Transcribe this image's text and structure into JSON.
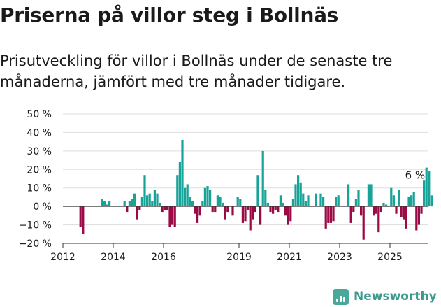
{
  "header": {
    "title": "Priserna på villor steg i Bollnäs",
    "subtitle": "Prisutveckling för villor i Bollnäs under de senaste tre månaderna, jämfört med tre månader tidigare."
  },
  "brand": {
    "name": "Newsworthy"
  },
  "colors": {
    "positive": "#17a398",
    "negative": "#9a0a45",
    "zero_line": "#333333",
    "grid": "#dddddd"
  },
  "chart_data": {
    "type": "bar",
    "x_unit": "year",
    "y_unit": "percent",
    "xlim": [
      2012,
      2026.5
    ],
    "ylim": [
      -20,
      50
    ],
    "x_ticks": [
      2012,
      2014,
      2016,
      2019,
      2021,
      2023,
      2025
    ],
    "x_tick_labels": [
      "2012",
      "2014",
      "2016",
      "2019",
      "2021",
      "2023",
      "2025"
    ],
    "y_ticks": [
      -20,
      -10,
      0,
      10,
      20,
      30,
      40,
      50
    ],
    "y_tick_labels": [
      "−20 %",
      "−10 %",
      "0 %",
      "10 %",
      "20 %",
      "30 %",
      "40 %",
      "50 %"
    ],
    "annotation": {
      "text": "6 %",
      "x": 2025.6,
      "y": 6
    },
    "points": [
      [
        2012.7,
        -11
      ],
      [
        2012.8,
        -15
      ],
      [
        2013.55,
        4
      ],
      [
        2013.65,
        3
      ],
      [
        2013.75,
        1
      ],
      [
        2013.85,
        3
      ],
      [
        2014.45,
        3
      ],
      [
        2014.55,
        -3
      ],
      [
        2014.65,
        3
      ],
      [
        2014.75,
        4
      ],
      [
        2014.85,
        7
      ],
      [
        2014.95,
        -7
      ],
      [
        2015.05,
        -2
      ],
      [
        2015.15,
        5
      ],
      [
        2015.25,
        17
      ],
      [
        2015.35,
        6
      ],
      [
        2015.45,
        7
      ],
      [
        2015.55,
        3
      ],
      [
        2015.65,
        9
      ],
      [
        2015.75,
        7
      ],
      [
        2015.85,
        2
      ],
      [
        2015.95,
        -3
      ],
      [
        2016.05,
        -2
      ],
      [
        2016.15,
        -2
      ],
      [
        2016.25,
        -11
      ],
      [
        2016.35,
        -10
      ],
      [
        2016.45,
        -11
      ],
      [
        2016.55,
        17
      ],
      [
        2016.65,
        24
      ],
      [
        2016.75,
        36
      ],
      [
        2016.85,
        10
      ],
      [
        2016.95,
        12
      ],
      [
        2017.05,
        5
      ],
      [
        2017.15,
        3
      ],
      [
        2017.25,
        -4
      ],
      [
        2017.35,
        -9
      ],
      [
        2017.45,
        -5
      ],
      [
        2017.55,
        3
      ],
      [
        2017.65,
        10
      ],
      [
        2017.75,
        11
      ],
      [
        2017.85,
        9
      ],
      [
        2017.95,
        -3
      ],
      [
        2018.05,
        -3
      ],
      [
        2018.15,
        6
      ],
      [
        2018.25,
        5
      ],
      [
        2018.35,
        2
      ],
      [
        2018.45,
        -7
      ],
      [
        2018.55,
        -3
      ],
      [
        2018.75,
        -5
      ],
      [
        2018.95,
        5
      ],
      [
        2019.05,
        4
      ],
      [
        2019.15,
        -9
      ],
      [
        2019.25,
        -8
      ],
      [
        2019.35,
        -2
      ],
      [
        2019.45,
        -13
      ],
      [
        2019.55,
        -7
      ],
      [
        2019.65,
        -3
      ],
      [
        2019.75,
        17
      ],
      [
        2019.85,
        -10
      ],
      [
        2019.95,
        30
      ],
      [
        2020.05,
        9
      ],
      [
        2020.15,
        2
      ],
      [
        2020.25,
        -3
      ],
      [
        2020.35,
        -4
      ],
      [
        2020.45,
        -2
      ],
      [
        2020.55,
        -3
      ],
      [
        2020.65,
        6
      ],
      [
        2020.75,
        2
      ],
      [
        2020.85,
        -5
      ],
      [
        2020.95,
        -10
      ],
      [
        2021.05,
        -8
      ],
      [
        2021.15,
        4
      ],
      [
        2021.25,
        12
      ],
      [
        2021.35,
        17
      ],
      [
        2021.45,
        13
      ],
      [
        2021.55,
        7
      ],
      [
        2021.65,
        3
      ],
      [
        2021.75,
        6
      ],
      [
        2022.05,
        7
      ],
      [
        2022.25,
        7
      ],
      [
        2022.35,
        5
      ],
      [
        2022.45,
        -12
      ],
      [
        2022.55,
        -9
      ],
      [
        2022.65,
        -9
      ],
      [
        2022.75,
        -8
      ],
      [
        2022.85,
        5
      ],
      [
        2022.95,
        6
      ],
      [
        2023.35,
        12
      ],
      [
        2023.45,
        -9
      ],
      [
        2023.55,
        -3
      ],
      [
        2023.65,
        4
      ],
      [
        2023.75,
        9
      ],
      [
        2023.85,
        -5
      ],
      [
        2023.95,
        -18
      ],
      [
        2024.15,
        12
      ],
      [
        2024.25,
        12
      ],
      [
        2024.35,
        -5
      ],
      [
        2024.45,
        -4
      ],
      [
        2024.55,
        -14
      ],
      [
        2024.65,
        -3
      ],
      [
        2024.75,
        2
      ],
      [
        2024.85,
        1
      ],
      [
        2025.05,
        10
      ],
      [
        2025.15,
        6
      ],
      [
        2025.25,
        -4
      ],
      [
        2025.35,
        9
      ],
      [
        2025.45,
        -6
      ],
      [
        2025.55,
        -7
      ],
      [
        2025.65,
        -12
      ],
      [
        2025.75,
        5
      ],
      [
        2025.85,
        6
      ],
      [
        2025.95,
        8
      ],
      [
        2026.05,
        -13
      ],
      [
        2026.15,
        -10
      ],
      [
        2026.25,
        -4
      ],
      [
        2026.35,
        14
      ],
      [
        2026.45,
        21
      ],
      [
        2026.55,
        19
      ],
      [
        2026.65,
        6
      ]
    ]
  }
}
